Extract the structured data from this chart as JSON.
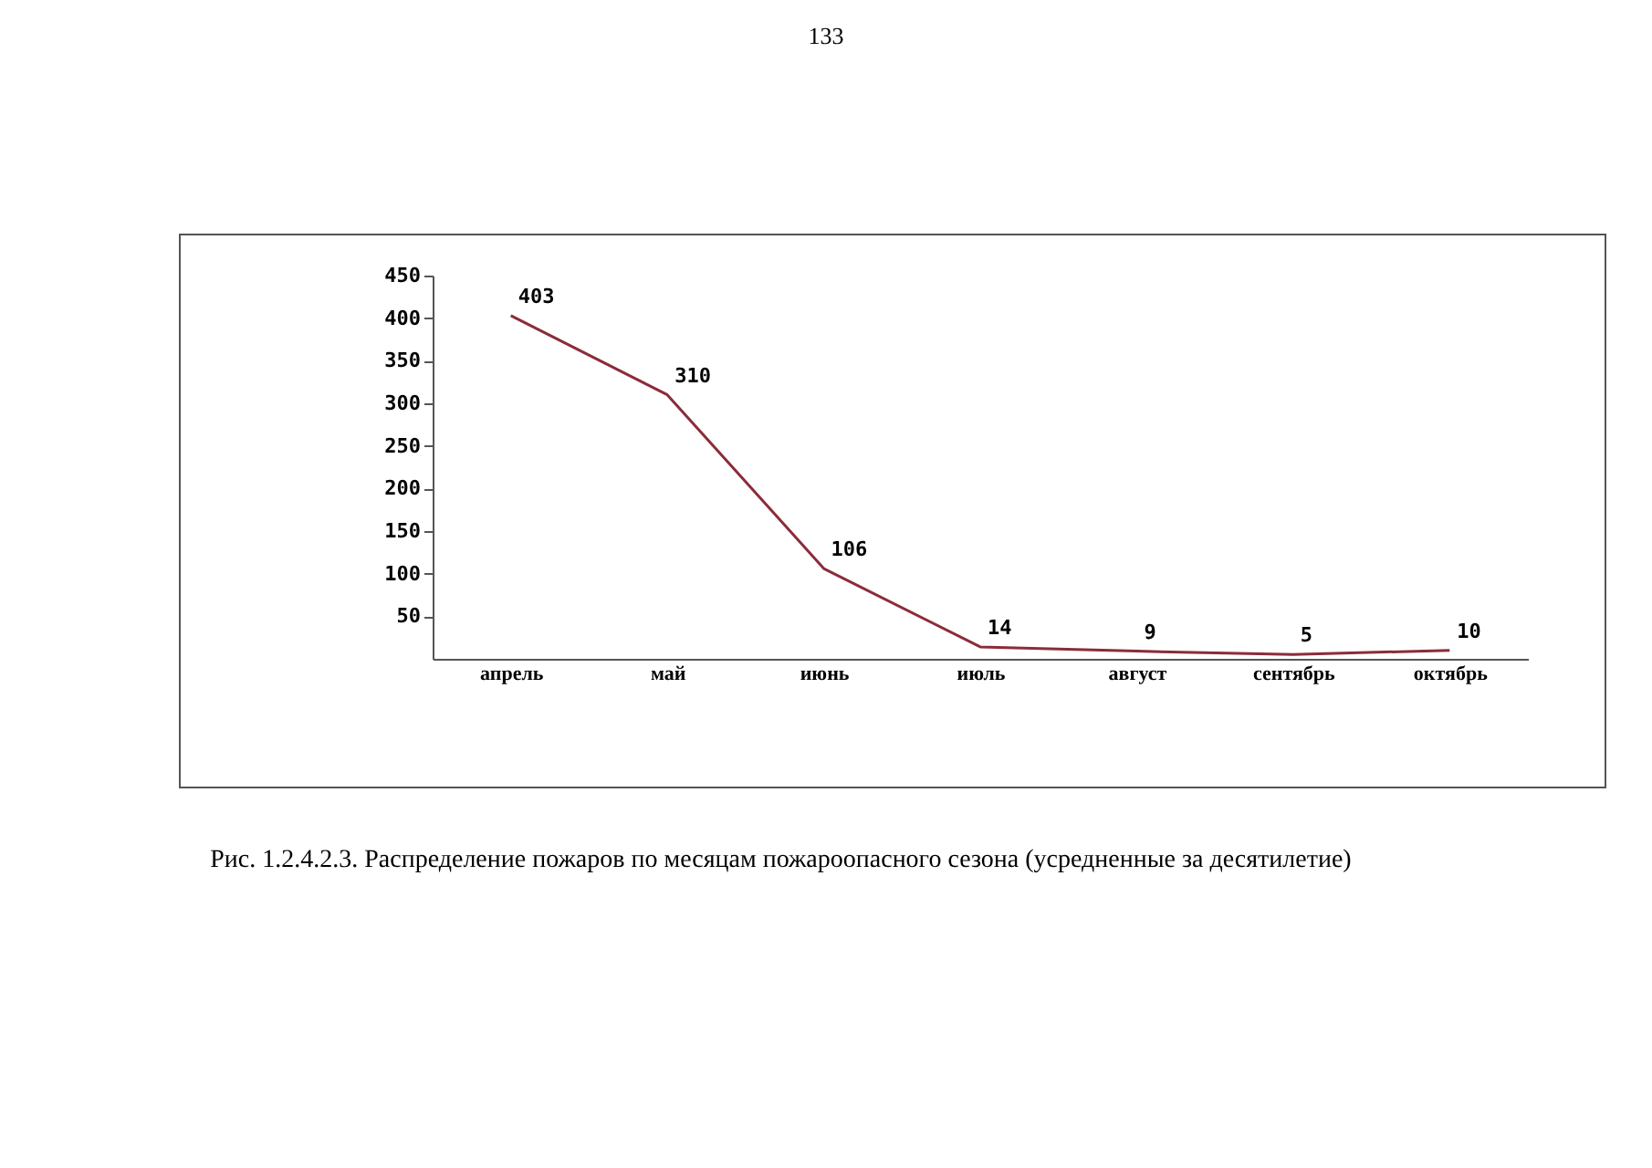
{
  "chart_data": {
    "type": "line",
    "title": "Рис. 1.2.4.2.3. Распределение пожаров по месяцам пожароопасного сезона (усредненные за десятилетие)",
    "annotations": [
      "133"
    ],
    "categories": [
      "апрель",
      "май",
      "июнь",
      "июль",
      "август",
      "сентябрь",
      "октябрь"
    ],
    "series": [
      {
        "color": "#8b2c3a",
        "values": [
          403,
          310,
          106,
          14,
          9,
          5,
          10
        ]
      }
    ],
    "ylim": [
      0,
      450
    ],
    "yticks": [
      50,
      100,
      150,
      200,
      250,
      300,
      350,
      400,
      450
    ],
    "data_labels": true,
    "grid": false,
    "legend": false,
    "marker": "none",
    "line_style": "solid"
  }
}
